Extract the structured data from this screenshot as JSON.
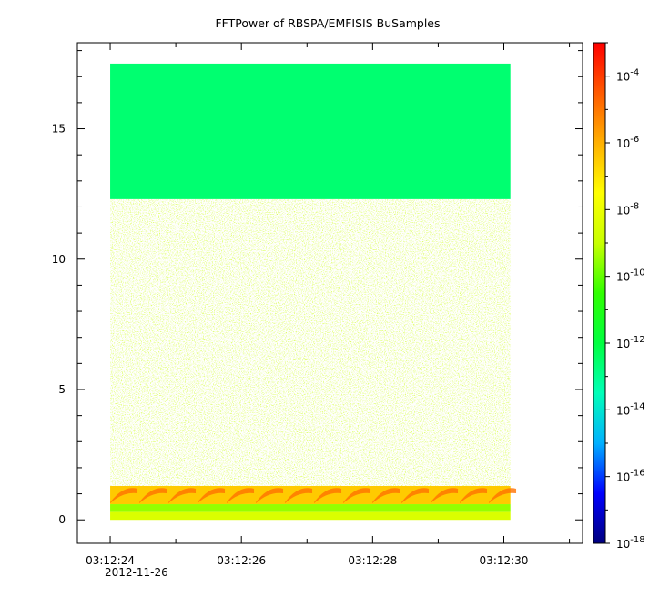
{
  "chart_data": {
    "type": "heatmap",
    "title": "FFTPower of RBSPA/EMFISIS  BuSamples",
    "xlabel": "",
    "ylabel": "",
    "x": {
      "ticks": [
        "03:12:24",
        "03:12:26",
        "03:12:28",
        "03:12:30"
      ],
      "date_label": "2012-11-26",
      "range_seconds": [
        23.5,
        31.2
      ],
      "data_start_seconds": 24.0,
      "data_end_seconds": 30.1
    },
    "y": {
      "ticks": [
        0,
        5,
        10,
        15
      ],
      "range": [
        -0.9,
        18.3
      ],
      "data_range": [
        0,
        17.5
      ]
    },
    "colorbar": {
      "scale": "log",
      "range": [
        "1e-18",
        "1e-3"
      ],
      "tick_labels": [
        {
          "base": "10",
          "exp": "-4"
        },
        {
          "base": "10",
          "exp": "-6"
        },
        {
          "base": "10",
          "exp": "-8"
        },
        {
          "base": "10",
          "exp": "-10"
        },
        {
          "base": "10",
          "exp": "-12"
        },
        {
          "base": "10",
          "exp": "-14"
        },
        {
          "base": "10",
          "exp": "-16"
        },
        {
          "base": "10",
          "exp": "-18"
        }
      ],
      "colors": [
        "#00007f",
        "#0000ff",
        "#00b0ff",
        "#00ffb8",
        "#00ff40",
        "#30ff00",
        "#c8ff00",
        "#ffff00",
        "#ffb000",
        "#ff5a00",
        "#ff0000"
      ]
    },
    "bands": [
      {
        "y_range": [
          12.3,
          17.5
        ],
        "approx_log_power": -12.6
      },
      {
        "y_range": [
          2.2,
          12.3
        ],
        "approx_log_power": -10.6
      },
      {
        "y_range": [
          1.3,
          2.2
        ],
        "approx_log_power": -10.0
      },
      {
        "y_range": [
          0.6,
          1.3
        ],
        "approx_log_power": -6.5
      },
      {
        "y_range": [
          0.3,
          0.6
        ],
        "approx_log_power": -9.5
      },
      {
        "y_range": [
          0,
          0.3
        ],
        "approx_log_power": -8.5
      }
    ],
    "grid": false
  }
}
